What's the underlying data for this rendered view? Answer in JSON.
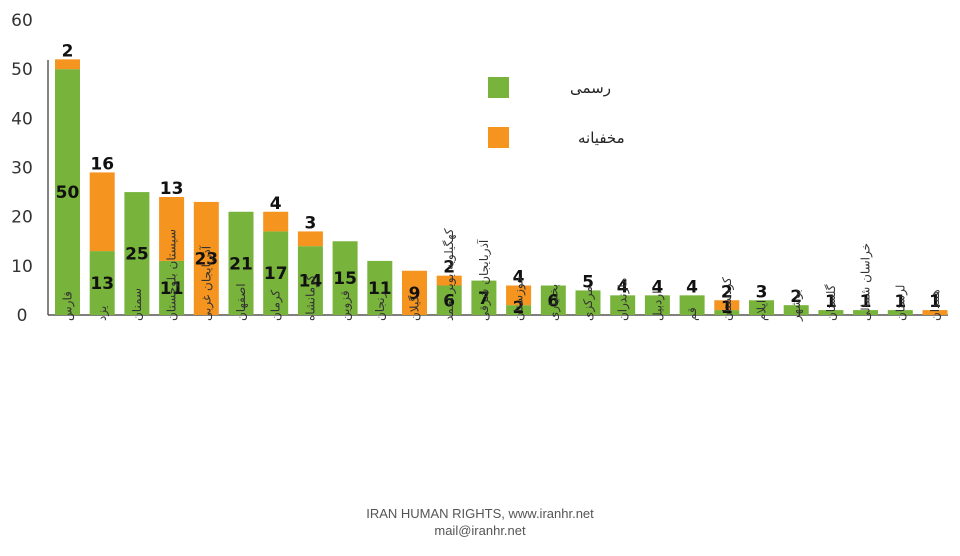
{
  "chart_data": {
    "type": "bar",
    "stacked": true,
    "title": "",
    "xlabel": "",
    "ylabel": "",
    "ylim": [
      0,
      60
    ],
    "yticks": [
      0,
      10,
      20,
      30,
      40,
      50,
      60
    ],
    "grid": false,
    "legend_position": "top-right",
    "categories": [
      "فارس",
      "یزد",
      "سمنان",
      "سیستان بلوچستان",
      "آذربایجان غربی",
      "اصفهان",
      "کرمان",
      "کرمانشاه",
      "قزوین",
      "زنجان",
      "گیلان",
      "کهگیلویه بویر احمد",
      "آذربایجان شرقی",
      "خوزستان",
      "بختیاری",
      "مرکزی",
      "مازندران",
      "اردبیل",
      "قم",
      "کردستان",
      "ایلام",
      "بوشهر",
      "گلستان",
      "خراسان شمالی",
      "لرستان",
      "همدان"
    ],
    "series": [
      {
        "name": "رسمی",
        "color": "#78b43c",
        "values": [
          50,
          13,
          25,
          11,
          0,
          21,
          17,
          14,
          15,
          11,
          0,
          6,
          7,
          2,
          6,
          5,
          4,
          4,
          4,
          1,
          3,
          2,
          1,
          1,
          1,
          0
        ]
      },
      {
        "name": "مخفیانه",
        "color": "#f5941e",
        "values": [
          2,
          16,
          0,
          13,
          23,
          0,
          4,
          3,
          0,
          0,
          9,
          2,
          0,
          4,
          0,
          0,
          0,
          0,
          0,
          2,
          0,
          0,
          0,
          0,
          0,
          1
        ]
      }
    ]
  },
  "footer": {
    "line1": "IRAN HUMAN RIGHTS, www.iranhr.net",
    "line2": "mail@iranhr.net"
  }
}
